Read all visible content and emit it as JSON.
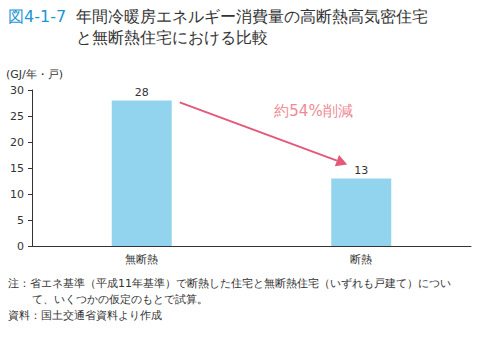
{
  "chart_data": {
    "type": "bar",
    "figure_label": "図4-1-7",
    "title": "年間冷暖房エネルギー消費量の高断熱高気密住宅と無断熱住宅における比較",
    "ylabel": "(GJ/年・戸)",
    "categories": [
      "無断熱",
      "断熱"
    ],
    "values": [
      28,
      13
    ],
    "color": "#92d3ee",
    "ylim": [
      0,
      30
    ],
    "yticks": [
      0,
      5,
      10,
      15,
      20,
      25,
      30
    ],
    "grid": false,
    "data_labels": true,
    "annotations": [
      "約54%削減"
    ],
    "notes": [
      "注：省エネ基準（平成11年基準）で断熱した住宅と無断熱住宅（いずれも戸建て）について、いくつかの仮定のもとで試算。"
    ],
    "source": "資料：国土交通省資料より作成"
  }
}
